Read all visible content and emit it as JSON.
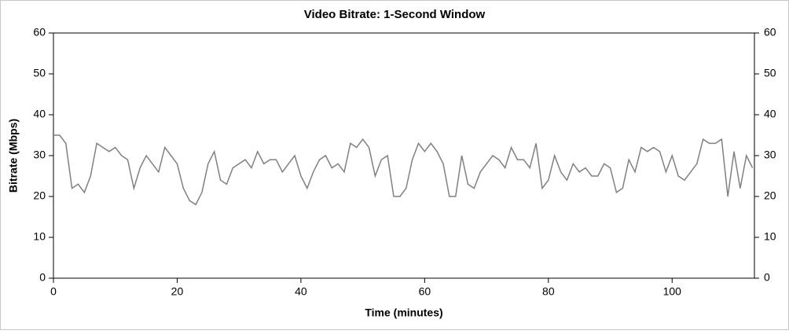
{
  "chart_data": {
    "type": "line",
    "title": "Video Bitrate: 1-Second Window",
    "x_label": "Time (minutes)",
    "y_label": "Bitrate (Mbps)",
    "x": [
      0,
      1,
      2,
      3,
      4,
      5,
      6,
      7,
      8,
      9,
      10,
      11,
      12,
      13,
      14,
      15,
      16,
      17,
      18,
      19,
      20,
      21,
      22,
      23,
      24,
      25,
      26,
      27,
      28,
      29,
      30,
      31,
      32,
      33,
      34,
      35,
      36,
      37,
      38,
      39,
      40,
      41,
      42,
      43,
      44,
      45,
      46,
      47,
      48,
      49,
      50,
      51,
      52,
      53,
      54,
      55,
      56,
      57,
      58,
      59,
      60,
      61,
      62,
      63,
      64,
      65,
      66,
      67,
      68,
      69,
      70,
      71,
      72,
      73,
      74,
      75,
      76,
      77,
      78,
      79,
      80,
      81,
      82,
      83,
      84,
      85,
      86,
      87,
      88,
      89,
      90,
      91,
      92,
      93,
      94,
      95,
      96,
      97,
      98,
      99,
      100,
      101,
      102,
      103,
      104,
      105,
      106,
      107,
      108,
      109,
      110,
      111,
      112,
      113
    ],
    "series": [
      {
        "name": "Bitrate",
        "color": "#808080",
        "values": [
          35,
          35,
          33,
          22,
          23,
          21,
          25,
          33,
          32,
          31,
          32,
          30,
          29,
          22,
          27,
          30,
          28,
          26,
          32,
          30,
          28,
          22,
          19,
          18,
          21,
          28,
          31,
          24,
          23,
          27,
          28,
          29,
          27,
          31,
          28,
          29,
          29,
          26,
          28,
          30,
          25,
          22,
          26,
          29,
          30,
          27,
          28,
          26,
          33,
          32,
          34,
          32,
          25,
          29,
          30,
          20,
          20,
          22,
          29,
          33,
          31,
          33,
          31,
          28,
          20,
          20,
          30,
          23,
          22,
          26,
          28,
          30,
          29,
          27,
          32,
          29,
          29,
          27,
          33,
          22,
          24,
          30,
          26,
          24,
          28,
          26,
          27,
          25,
          25,
          28,
          27,
          21,
          22,
          29,
          26,
          32,
          31,
          32,
          31,
          26,
          30,
          25,
          24,
          26,
          28,
          34,
          33,
          33,
          34,
          20,
          31,
          22,
          30,
          27
        ]
      }
    ],
    "xlim": [
      0,
      113.3
    ],
    "xticks": [
      0,
      20,
      40,
      60,
      80,
      100
    ],
    "ylim": [
      0,
      60
    ],
    "yticks": [
      0,
      10,
      20,
      30,
      40,
      50,
      60
    ],
    "right_axis": true
  }
}
